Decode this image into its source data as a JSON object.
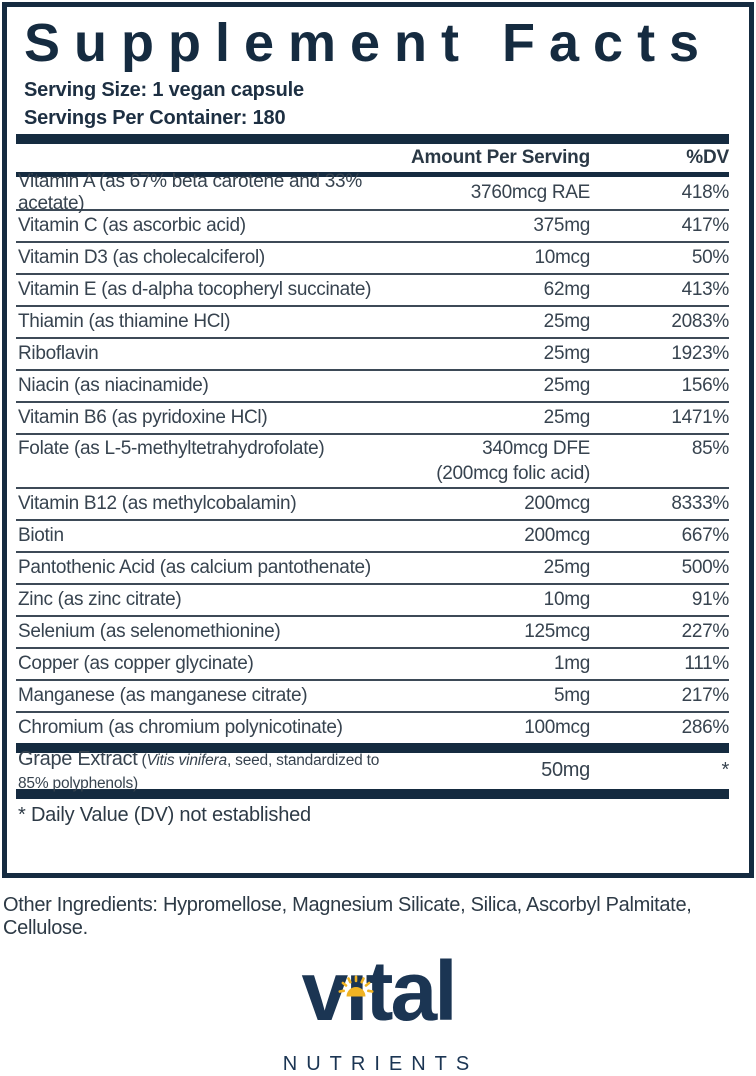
{
  "panel": {
    "title": "Supplement Facts",
    "serving_size": "Serving Size: 1 vegan capsule",
    "servings_per_container": "Servings Per Container: 180",
    "columns": {
      "amount": "Amount Per Serving",
      "dv": "%DV"
    },
    "rows": [
      {
        "name": "Vitamin A (as 67% beta carotene and 33% acetate)",
        "amount": "3760mcg RAE",
        "dv": "418%"
      },
      {
        "name": "Vitamin C (as ascorbic acid)",
        "amount": "375mg",
        "dv": "417%"
      },
      {
        "name": "Vitamin D3 (as cholecalciferol)",
        "amount": "10mcg",
        "dv": "50%"
      },
      {
        "name": "Vitamin E (as d-alpha tocopheryl succinate)",
        "amount": "62mg",
        "dv": "413%"
      },
      {
        "name": "Thiamin (as thiamine HCl)",
        "amount": "25mg",
        "dv": "2083%"
      },
      {
        "name": "Riboflavin",
        "amount": "25mg",
        "dv": "1923%"
      },
      {
        "name": "Niacin (as niacinamide)",
        "amount": "25mg",
        "dv": "156%"
      },
      {
        "name": "Vitamin B6 (as pyridoxine HCl)",
        "amount": "25mg",
        "dv": "1471%"
      },
      {
        "name": "Folate (as L-5-methyltetrahydrofolate)",
        "amount": "340mcg DFE",
        "amount2": "(200mcg folic acid)",
        "dv": "85%"
      },
      {
        "name": "Vitamin B12 (as methylcobalamin)",
        "amount": "200mcg",
        "dv": "8333%"
      },
      {
        "name": "Biotin",
        "amount": "200mcg",
        "dv": "667%"
      },
      {
        "name": "Pantothenic Acid (as calcium pantothenate)",
        "amount": "25mg",
        "dv": "500%"
      },
      {
        "name": "Zinc (as zinc citrate)",
        "amount": "10mg",
        "dv": "91%"
      },
      {
        "name": "Selenium (as selenomethionine)",
        "amount": "125mcg",
        "dv": "227%"
      },
      {
        "name": "Copper (as copper glycinate)",
        "amount": "1mg",
        "dv": "111%"
      },
      {
        "name": "Manganese (as manganese citrate)",
        "amount": "5mg",
        "dv": "217%"
      },
      {
        "name": "Chromium (as chromium polynicotinate)",
        "amount": "100mcg",
        "dv": "286%"
      }
    ],
    "extract": {
      "name": "Grape Extract",
      "detail_open": "(",
      "detail_italic": "Vitis vinifera",
      "detail_rest": ", seed, standardized to 85% polyphenols)",
      "amount": "50mg",
      "dv": "*"
    },
    "footnote": "* Daily Value (DV) not established"
  },
  "other_ingredients": "Other Ingredients: Hypromellose, Magnesium Silicate, Silica, Ascorbyl Palmitate, Cellulose.",
  "logo": {
    "brand": "vital",
    "sub": "NUTRIENTS",
    "sun_icon": "sun-icon"
  },
  "colors": {
    "navy": "#152b40",
    "logo_navy": "#1b3553",
    "gold": "#f0b323",
    "row_text": "#37434f"
  }
}
